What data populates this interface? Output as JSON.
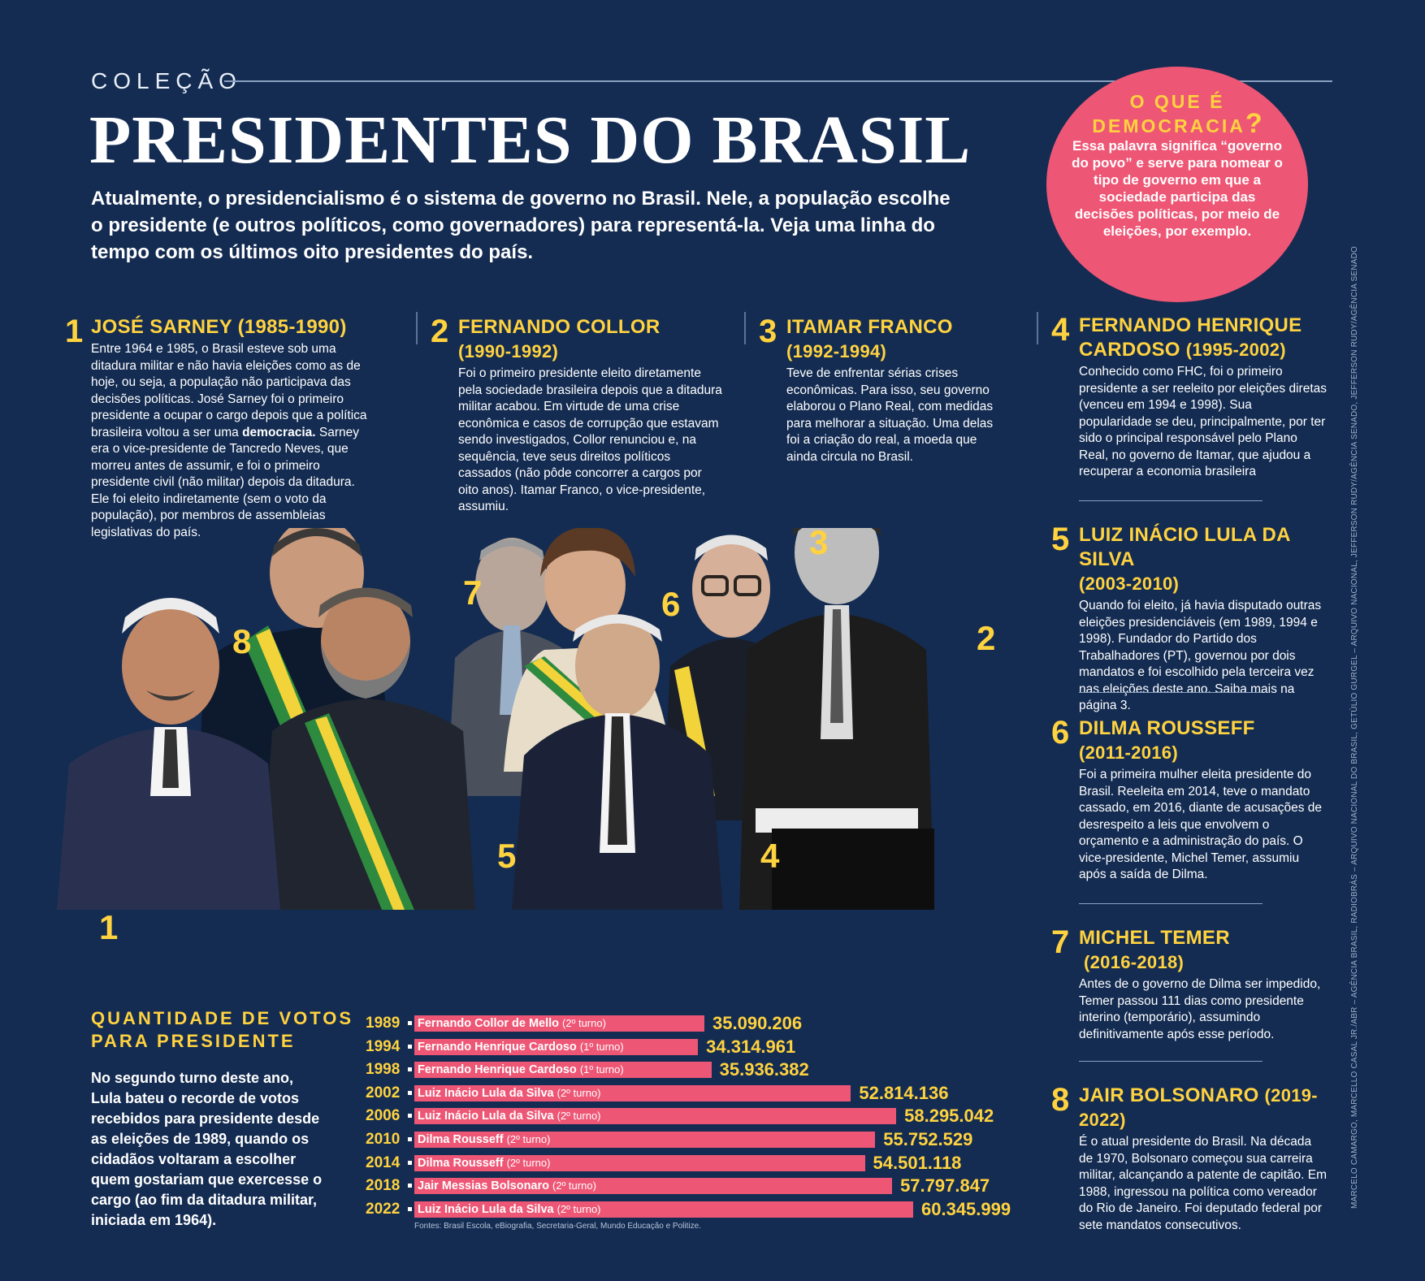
{
  "header": {
    "kicker": "COLEÇÃO",
    "title": "PRESIDENTES DO BRASIL",
    "intro": "Atualmente, o presidencialismo é o sistema de governo no Brasil. Nele, a população escolhe o presidente (e outros políticos, como governadores) para representá-la. Veja uma linha do tempo com os últimos oito presidentes do país."
  },
  "bubble": {
    "title": "O QUE É DEMOCRACIA",
    "qmark": "?",
    "text": "Essa palavra significa “governo do povo” e serve para nomear o tipo de governo em que a sociedade participa das decisões políticas, por meio de eleições, por exemplo."
  },
  "presidents": [
    {
      "num": "1",
      "name": "JOSÉ SARNEY",
      "years": "(1985-1990)",
      "text_a": "Entre 1964 e 1985, o Brasil esteve sob uma ditadura militar e não havia eleições como as de hoje, ou seja, a população não participava das decisões políticas. José Sarney foi o primeiro presidente a ocupar o cargo depois que a política brasileira voltou a ser uma ",
      "text_bold": "democracia.",
      "text_b": " Sarney era o vice-presidente de Tancredo Neves, que morreu antes de assumir, e foi o primeiro presidente civil (não militar) depois da ditadura. Ele foi eleito indiretamente (sem o voto da população), por membros de assembleias legislativas do país."
    },
    {
      "num": "2",
      "name": "FERNANDO COLLOR",
      "years": "(1990-1992)",
      "text": "Foi o primeiro presidente eleito diretamente pela sociedade brasileira depois que a ditadura militar acabou. Em virtude de uma crise econômica e casos de corrupção que estavam sendo investigados, Collor renunciou e, na sequência, teve seus direitos políticos cassados (não pôde concorrer a cargos por oito anos). Itamar Franco, o vice-presidente, assumiu."
    },
    {
      "num": "3",
      "name": "ITAMAR FRANCO",
      "years": "(1992-1994)",
      "text": "Teve de enfrentar sérias crises econômicas. Para isso, seu governo elaborou o Plano Real, com medidas para melhorar a situação. Uma delas foi a criação do real, a moeda que ainda circula no Brasil."
    },
    {
      "num": "4",
      "name": "FERNANDO HENRIQUE CARDOSO",
      "years": "(1995-2002)",
      "text": "Conhecido como FHC, foi o primeiro presidente a ser reeleito por eleições diretas (venceu em 1994 e 1998). Sua popularidade se deu, principalmente, por ter sido o principal responsável pelo Plano Real, no governo de Itamar, que ajudou a recuperar a economia brasileira"
    },
    {
      "num": "5",
      "name": "LUIZ INÁCIO LULA DA SILVA",
      "years": "(2003-2010)",
      "text": "Quando foi eleito, já havia disputado outras eleições presidenciáveis (em 1989, 1994 e 1998). Fundador do Partido dos Trabalhadores (PT), governou por dois mandatos e foi escolhido pela terceira vez nas eleições deste ano. Saiba mais na página 3."
    },
    {
      "num": "6",
      "name": "DILMA ROUSSEFF",
      "years": "(2011-2016)",
      "text": "Foi a primeira mulher eleita presidente do Brasil. Reeleita em 2014, teve o mandato cassado, em 2016, diante de acusações de desrespeito a leis que envolvem o orçamento e a administração do país. O vice-presidente, Michel Temer, assumiu após a saída de Dilma."
    },
    {
      "num": "7",
      "name": "MICHEL TEMER",
      "years": "(2016-2018)",
      "text": "Antes de o governo de Dilma ser impedido, Temer passou 111 dias como presidente interino (temporário), assumindo definitivamente após esse período."
    },
    {
      "num": "8",
      "name": "JAIR BOLSONARO",
      "years": "(2019-2022)",
      "text": "É o atual presidente do Brasil. Na década de 1970, Bolsonaro começou sua carreira militar, alcançando a patente de capitão. Em 1988, ingressou na política como vereador do Rio de Janeiro. Foi deputado federal por sete mandatos consecutivos."
    }
  ],
  "photo_labels": [
    "1",
    "2",
    "3",
    "4",
    "5",
    "6",
    "7",
    "8"
  ],
  "votes": {
    "title_line1": "QUANTIDADE DE VOTOS",
    "title_line2": "PARA PRESIDENTE",
    "text": "No segundo turno deste ano, Lula bateu o recorde de votos recebidos para presidente desde as eleições de 1989, quando os cidadãos voltaram a escolher quem gostariam que exercesse o cargo (ao fim da ditadura militar, iniciada em 1964).",
    "sources": "Fontes: Brasil Escola, eBiografia, Secretaria-Geral, Mundo Educação e Politize."
  },
  "chart_data": {
    "type": "bar",
    "categories": [
      "1989",
      "1994",
      "1998",
      "2002",
      "2006",
      "2010",
      "2014",
      "2018",
      "2022"
    ],
    "candidates": [
      "Fernando Collor de Mello",
      "Fernando Henrique Cardoso",
      "Fernando Henrique Cardoso",
      "Luiz Inácio Lula da Silva",
      "Luiz Inácio Lula da Silva",
      "Dilma Rousseff",
      "Dilma Rousseff",
      "Jair Messias Bolsonaro",
      "Luiz Inácio Lula da Silva"
    ],
    "turns": [
      "(2º turno)",
      "(1º turno)",
      "(1º turno)",
      "(2º turno)",
      "(2º turno)",
      "(2º turno)",
      "(2º turno)",
      "(2º turno)",
      "(2º turno)"
    ],
    "values": [
      35090206,
      34314961,
      35936382,
      52814136,
      58295042,
      55752529,
      54501118,
      57797847,
      60345999
    ],
    "value_labels": [
      "35.090.206",
      "34.314.961",
      "35.936.382",
      "52.814.136",
      "58.295.042",
      "55.752.529",
      "54.501.118",
      "57.797.847",
      "60.345.999"
    ]
  },
  "credit": "MARCELO CAMARGO, MARCELLO CASAL JR./ABR – AGÊNCIA BRASIL, RADIOBRÁS – ARQUIVO NACIONAL DO BRASIL, GETÚLIO GURGEL – ARQUIVO NACIONAL, JEFFERSON RUDY/AGÊNCIA SENADO, JEFFERSON RUDY/AGÊNCIA SENADO",
  "colors": {
    "background": "#142c52",
    "accent_yellow": "#ffd23f",
    "accent_pink": "#ee5675"
  }
}
